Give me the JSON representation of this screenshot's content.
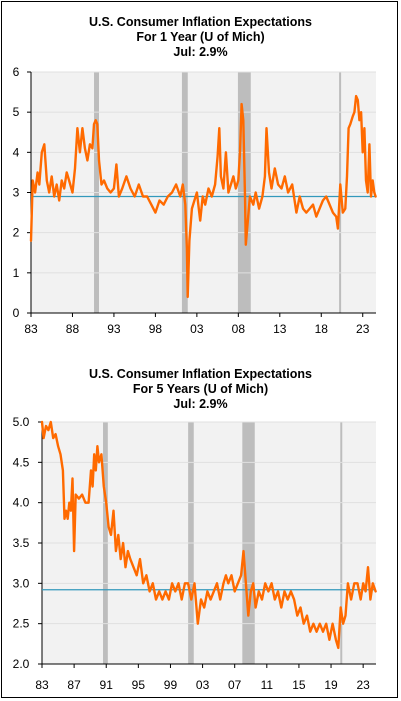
{
  "chart_data": [
    {
      "type": "line",
      "title": "U.S. Consumer Inflation Expectations",
      "subtitle": "For 1 Year (U of Mich)",
      "latest_label": "Jul: 2.9%",
      "x_tick_labels": [
        "83",
        "88",
        "93",
        "98",
        "03",
        "08",
        "13",
        "18",
        "23"
      ],
      "y_tick_labels": [
        "0",
        "1",
        "2",
        "3",
        "4",
        "5",
        "6"
      ],
      "ylim": [
        0,
        6
      ],
      "xlim": [
        1983,
        2024.6
      ],
      "grid": true,
      "plot_background": "#f2f2f2",
      "series": [
        {
          "color": "#ff6a00",
          "points": [
            [
              1983.0,
              1.8
            ],
            [
              1983.2,
              3.3
            ],
            [
              1983.5,
              3.0
            ],
            [
              1983.8,
              3.5
            ],
            [
              1984.0,
              3.2
            ],
            [
              1984.3,
              4.0
            ],
            [
              1984.6,
              4.2
            ],
            [
              1984.9,
              3.3
            ],
            [
              1985.2,
              3.0
            ],
            [
              1985.5,
              3.4
            ],
            [
              1985.8,
              2.9
            ],
            [
              1986.1,
              3.2
            ],
            [
              1986.4,
              2.8
            ],
            [
              1986.7,
              3.3
            ],
            [
              1987.0,
              3.1
            ],
            [
              1987.3,
              3.5
            ],
            [
              1987.6,
              3.3
            ],
            [
              1988.0,
              3.0
            ],
            [
              1988.3,
              3.6
            ],
            [
              1988.6,
              4.6
            ],
            [
              1988.9,
              4.0
            ],
            [
              1989.2,
              4.6
            ],
            [
              1989.5,
              4.1
            ],
            [
              1989.8,
              3.8
            ],
            [
              1990.1,
              4.2
            ],
            [
              1990.4,
              4.1
            ],
            [
              1990.6,
              4.7
            ],
            [
              1990.8,
              4.8
            ],
            [
              1991.0,
              4.7
            ],
            [
              1991.2,
              3.8
            ],
            [
              1991.5,
              3.2
            ],
            [
              1991.8,
              3.3
            ],
            [
              1992.2,
              3.1
            ],
            [
              1992.6,
              3.0
            ],
            [
              1993.0,
              3.1
            ],
            [
              1993.3,
              3.7
            ],
            [
              1993.6,
              2.9
            ],
            [
              1994.0,
              3.1
            ],
            [
              1994.5,
              3.4
            ],
            [
              1995.0,
              3.1
            ],
            [
              1995.5,
              2.9
            ],
            [
              1996.0,
              3.2
            ],
            [
              1996.5,
              2.9
            ],
            [
              1997.0,
              2.9
            ],
            [
              1997.5,
              2.7
            ],
            [
              1998.0,
              2.5
            ],
            [
              1998.5,
              2.8
            ],
            [
              1999.0,
              2.7
            ],
            [
              1999.5,
              2.9
            ],
            [
              2000.0,
              3.0
            ],
            [
              2000.5,
              3.2
            ],
            [
              2001.0,
              2.9
            ],
            [
              2001.3,
              3.2
            ],
            [
              2001.6,
              2.7
            ],
            [
              2001.8,
              1.6
            ],
            [
              2001.9,
              0.4
            ],
            [
              2002.1,
              1.8
            ],
            [
              2002.4,
              2.6
            ],
            [
              2002.7,
              2.8
            ],
            [
              2003.0,
              3.0
            ],
            [
              2003.4,
              2.3
            ],
            [
              2003.7,
              2.9
            ],
            [
              2004.0,
              2.7
            ],
            [
              2004.4,
              3.1
            ],
            [
              2004.8,
              2.9
            ],
            [
              2005.2,
              3.2
            ],
            [
              2005.5,
              3.9
            ],
            [
              2005.7,
              4.6
            ],
            [
              2005.9,
              3.4
            ],
            [
              2006.2,
              3.1
            ],
            [
              2006.5,
              4.0
            ],
            [
              2006.8,
              3.0
            ],
            [
              2007.1,
              3.2
            ],
            [
              2007.4,
              3.4
            ],
            [
              2007.7,
              3.1
            ],
            [
              2008.0,
              3.3
            ],
            [
              2008.2,
              4.0
            ],
            [
              2008.4,
              5.2
            ],
            [
              2008.6,
              4.8
            ],
            [
              2008.8,
              2.9
            ],
            [
              2008.9,
              1.7
            ],
            [
              2009.1,
              2.2
            ],
            [
              2009.4,
              2.9
            ],
            [
              2009.8,
              2.7
            ],
            [
              2010.1,
              3.0
            ],
            [
              2010.5,
              2.6
            ],
            [
              2010.9,
              2.9
            ],
            [
              2011.2,
              3.4
            ],
            [
              2011.4,
              4.6
            ],
            [
              2011.7,
              3.5
            ],
            [
              2012.0,
              3.1
            ],
            [
              2012.4,
              3.6
            ],
            [
              2012.8,
              3.2
            ],
            [
              2013.2,
              3.1
            ],
            [
              2013.6,
              3.4
            ],
            [
              2014.0,
              3.0
            ],
            [
              2014.5,
              3.2
            ],
            [
              2015.0,
              2.5
            ],
            [
              2015.4,
              2.9
            ],
            [
              2015.8,
              2.6
            ],
            [
              2016.2,
              2.5
            ],
            [
              2016.6,
              2.6
            ],
            [
              2017.0,
              2.7
            ],
            [
              2017.4,
              2.4
            ],
            [
              2017.8,
              2.6
            ],
            [
              2018.2,
              2.8
            ],
            [
              2018.6,
              2.9
            ],
            [
              2019.0,
              2.7
            ],
            [
              2019.4,
              2.5
            ],
            [
              2019.8,
              2.4
            ],
            [
              2020.0,
              2.1
            ],
            [
              2020.3,
              3.2
            ],
            [
              2020.6,
              2.5
            ],
            [
              2020.9,
              2.6
            ],
            [
              2021.1,
              3.4
            ],
            [
              2021.3,
              4.6
            ],
            [
              2021.5,
              4.7
            ],
            [
              2021.8,
              4.9
            ],
            [
              2022.0,
              5.0
            ],
            [
              2022.2,
              5.4
            ],
            [
              2022.4,
              5.3
            ],
            [
              2022.6,
              4.8
            ],
            [
              2022.8,
              5.0
            ],
            [
              2023.0,
              4.0
            ],
            [
              2023.2,
              4.6
            ],
            [
              2023.4,
              3.3
            ],
            [
              2023.6,
              3.0
            ],
            [
              2023.8,
              4.2
            ],
            [
              2024.0,
              2.9
            ],
            [
              2024.2,
              3.3
            ],
            [
              2024.4,
              3.0
            ],
            [
              2024.55,
              2.9
            ]
          ]
        }
      ],
      "reference_line": {
        "y": 2.9,
        "color": "#3399bb"
      },
      "shaded_periods": [
        [
          1990.6,
          1991.2
        ],
        [
          2001.2,
          2001.9
        ],
        [
          2007.95,
          2009.5
        ],
        [
          2020.15,
          2020.35
        ]
      ]
    },
    {
      "type": "line",
      "title": "U.S. Consumer Inflation Expectations",
      "subtitle": "For 5 Years (U of Mich)",
      "latest_label": "Jul: 2.9%",
      "x_tick_labels": [
        "83",
        "87",
        "91",
        "95",
        "99",
        "03",
        "07",
        "11",
        "15",
        "19",
        "23"
      ],
      "y_tick_labels": [
        "2.0",
        "2.5",
        "3.0",
        "3.5",
        "4.0",
        "4.5",
        "5.0"
      ],
      "ylim": [
        2.0,
        5.0
      ],
      "xlim": [
        1983,
        2024.6
      ],
      "grid": true,
      "plot_background": "#f2f2f2",
      "series": [
        {
          "color": "#ff6a00",
          "points": [
            [
              1983.0,
              5.0
            ],
            [
              1983.2,
              4.8
            ],
            [
              1983.5,
              4.95
            ],
            [
              1983.8,
              4.9
            ],
            [
              1984.1,
              5.0
            ],
            [
              1984.4,
              4.8
            ],
            [
              1984.7,
              4.85
            ],
            [
              1985.0,
              4.7
            ],
            [
              1985.3,
              4.6
            ],
            [
              1985.6,
              4.4
            ],
            [
              1985.8,
              3.8
            ],
            [
              1986.0,
              3.9
            ],
            [
              1986.2,
              3.8
            ],
            [
              1986.4,
              4.0
            ],
            [
              1986.6,
              3.9
            ],
            [
              1986.8,
              4.3
            ],
            [
              1987.0,
              3.4
            ],
            [
              1987.2,
              4.1
            ],
            [
              1987.6,
              4.05
            ],
            [
              1988.0,
              4.1
            ],
            [
              1988.4,
              4.0
            ],
            [
              1988.8,
              4.0
            ],
            [
              1989.1,
              4.4
            ],
            [
              1989.3,
              4.2
            ],
            [
              1989.5,
              4.6
            ],
            [
              1989.7,
              4.4
            ],
            [
              1989.9,
              4.7
            ],
            [
              1990.1,
              4.5
            ],
            [
              1990.4,
              4.6
            ],
            [
              1990.7,
              4.2
            ],
            [
              1991.0,
              4.0
            ],
            [
              1991.3,
              3.7
            ],
            [
              1991.6,
              3.6
            ],
            [
              1991.9,
              3.9
            ],
            [
              1992.2,
              3.4
            ],
            [
              1992.5,
              3.6
            ],
            [
              1992.8,
              3.3
            ],
            [
              1993.1,
              3.5
            ],
            [
              1993.4,
              3.2
            ],
            [
              1993.7,
              3.4
            ],
            [
              1994.0,
              3.3
            ],
            [
              1994.4,
              3.2
            ],
            [
              1994.8,
              3.1
            ],
            [
              1995.2,
              3.3
            ],
            [
              1995.6,
              3.0
            ],
            [
              1996.0,
              3.1
            ],
            [
              1996.4,
              2.9
            ],
            [
              1996.8,
              3.0
            ],
            [
              1997.2,
              2.8
            ],
            [
              1997.6,
              2.9
            ],
            [
              1998.0,
              2.8
            ],
            [
              1998.4,
              2.9
            ],
            [
              1998.8,
              2.8
            ],
            [
              1999.2,
              3.0
            ],
            [
              1999.6,
              2.9
            ],
            [
              2000.0,
              3.0
            ],
            [
              2000.4,
              2.8
            ],
            [
              2000.8,
              3.0
            ],
            [
              2001.2,
              3.0
            ],
            [
              2001.6,
              2.8
            ],
            [
              2002.0,
              3.0
            ],
            [
              2002.4,
              2.5
            ],
            [
              2002.8,
              2.8
            ],
            [
              2003.2,
              2.7
            ],
            [
              2003.6,
              2.9
            ],
            [
              2004.0,
              2.8
            ],
            [
              2004.4,
              2.9
            ],
            [
              2004.8,
              3.0
            ],
            [
              2005.2,
              2.8
            ],
            [
              2005.6,
              3.0
            ],
            [
              2005.9,
              3.1
            ],
            [
              2006.2,
              3.0
            ],
            [
              2006.6,
              3.1
            ],
            [
              2007.0,
              2.9
            ],
            [
              2007.4,
              3.0
            ],
            [
              2007.8,
              3.1
            ],
            [
              2008.1,
              3.4
            ],
            [
              2008.4,
              3.0
            ],
            [
              2008.7,
              2.6
            ],
            [
              2009.0,
              2.9
            ],
            [
              2009.3,
              3.0
            ],
            [
              2009.6,
              2.7
            ],
            [
              2010.0,
              2.9
            ],
            [
              2010.4,
              2.8
            ],
            [
              2010.8,
              3.0
            ],
            [
              2011.2,
              2.9
            ],
            [
              2011.6,
              3.0
            ],
            [
              2012.0,
              2.8
            ],
            [
              2012.4,
              2.9
            ],
            [
              2012.8,
              2.7
            ],
            [
              2013.2,
              2.9
            ],
            [
              2013.6,
              2.8
            ],
            [
              2014.0,
              2.9
            ],
            [
              2014.4,
              2.8
            ],
            [
              2014.8,
              2.6
            ],
            [
              2015.2,
              2.7
            ],
            [
              2015.6,
              2.5
            ],
            [
              2016.0,
              2.6
            ],
            [
              2016.4,
              2.4
            ],
            [
              2016.8,
              2.5
            ],
            [
              2017.2,
              2.4
            ],
            [
              2017.6,
              2.5
            ],
            [
              2018.0,
              2.4
            ],
            [
              2018.4,
              2.5
            ],
            [
              2018.8,
              2.3
            ],
            [
              2019.2,
              2.5
            ],
            [
              2019.6,
              2.3
            ],
            [
              2019.9,
              2.2
            ],
            [
              2020.2,
              2.7
            ],
            [
              2020.5,
              2.5
            ],
            [
              2020.8,
              2.6
            ],
            [
              2021.1,
              3.0
            ],
            [
              2021.5,
              2.8
            ],
            [
              2021.9,
              3.0
            ],
            [
              2022.3,
              3.0
            ],
            [
              2022.7,
              2.8
            ],
            [
              2023.0,
              3.0
            ],
            [
              2023.3,
              2.9
            ],
            [
              2023.6,
              3.2
            ],
            [
              2023.9,
              2.8
            ],
            [
              2024.2,
              3.0
            ],
            [
              2024.55,
              2.9
            ]
          ]
        }
      ],
      "reference_line": {
        "y": 2.92,
        "color": "#3399bb"
      },
      "shaded_periods": [
        [
          1990.6,
          1991.2
        ],
        [
          2001.2,
          2001.9
        ],
        [
          2007.95,
          2009.5
        ],
        [
          2020.15,
          2020.35
        ]
      ]
    }
  ]
}
